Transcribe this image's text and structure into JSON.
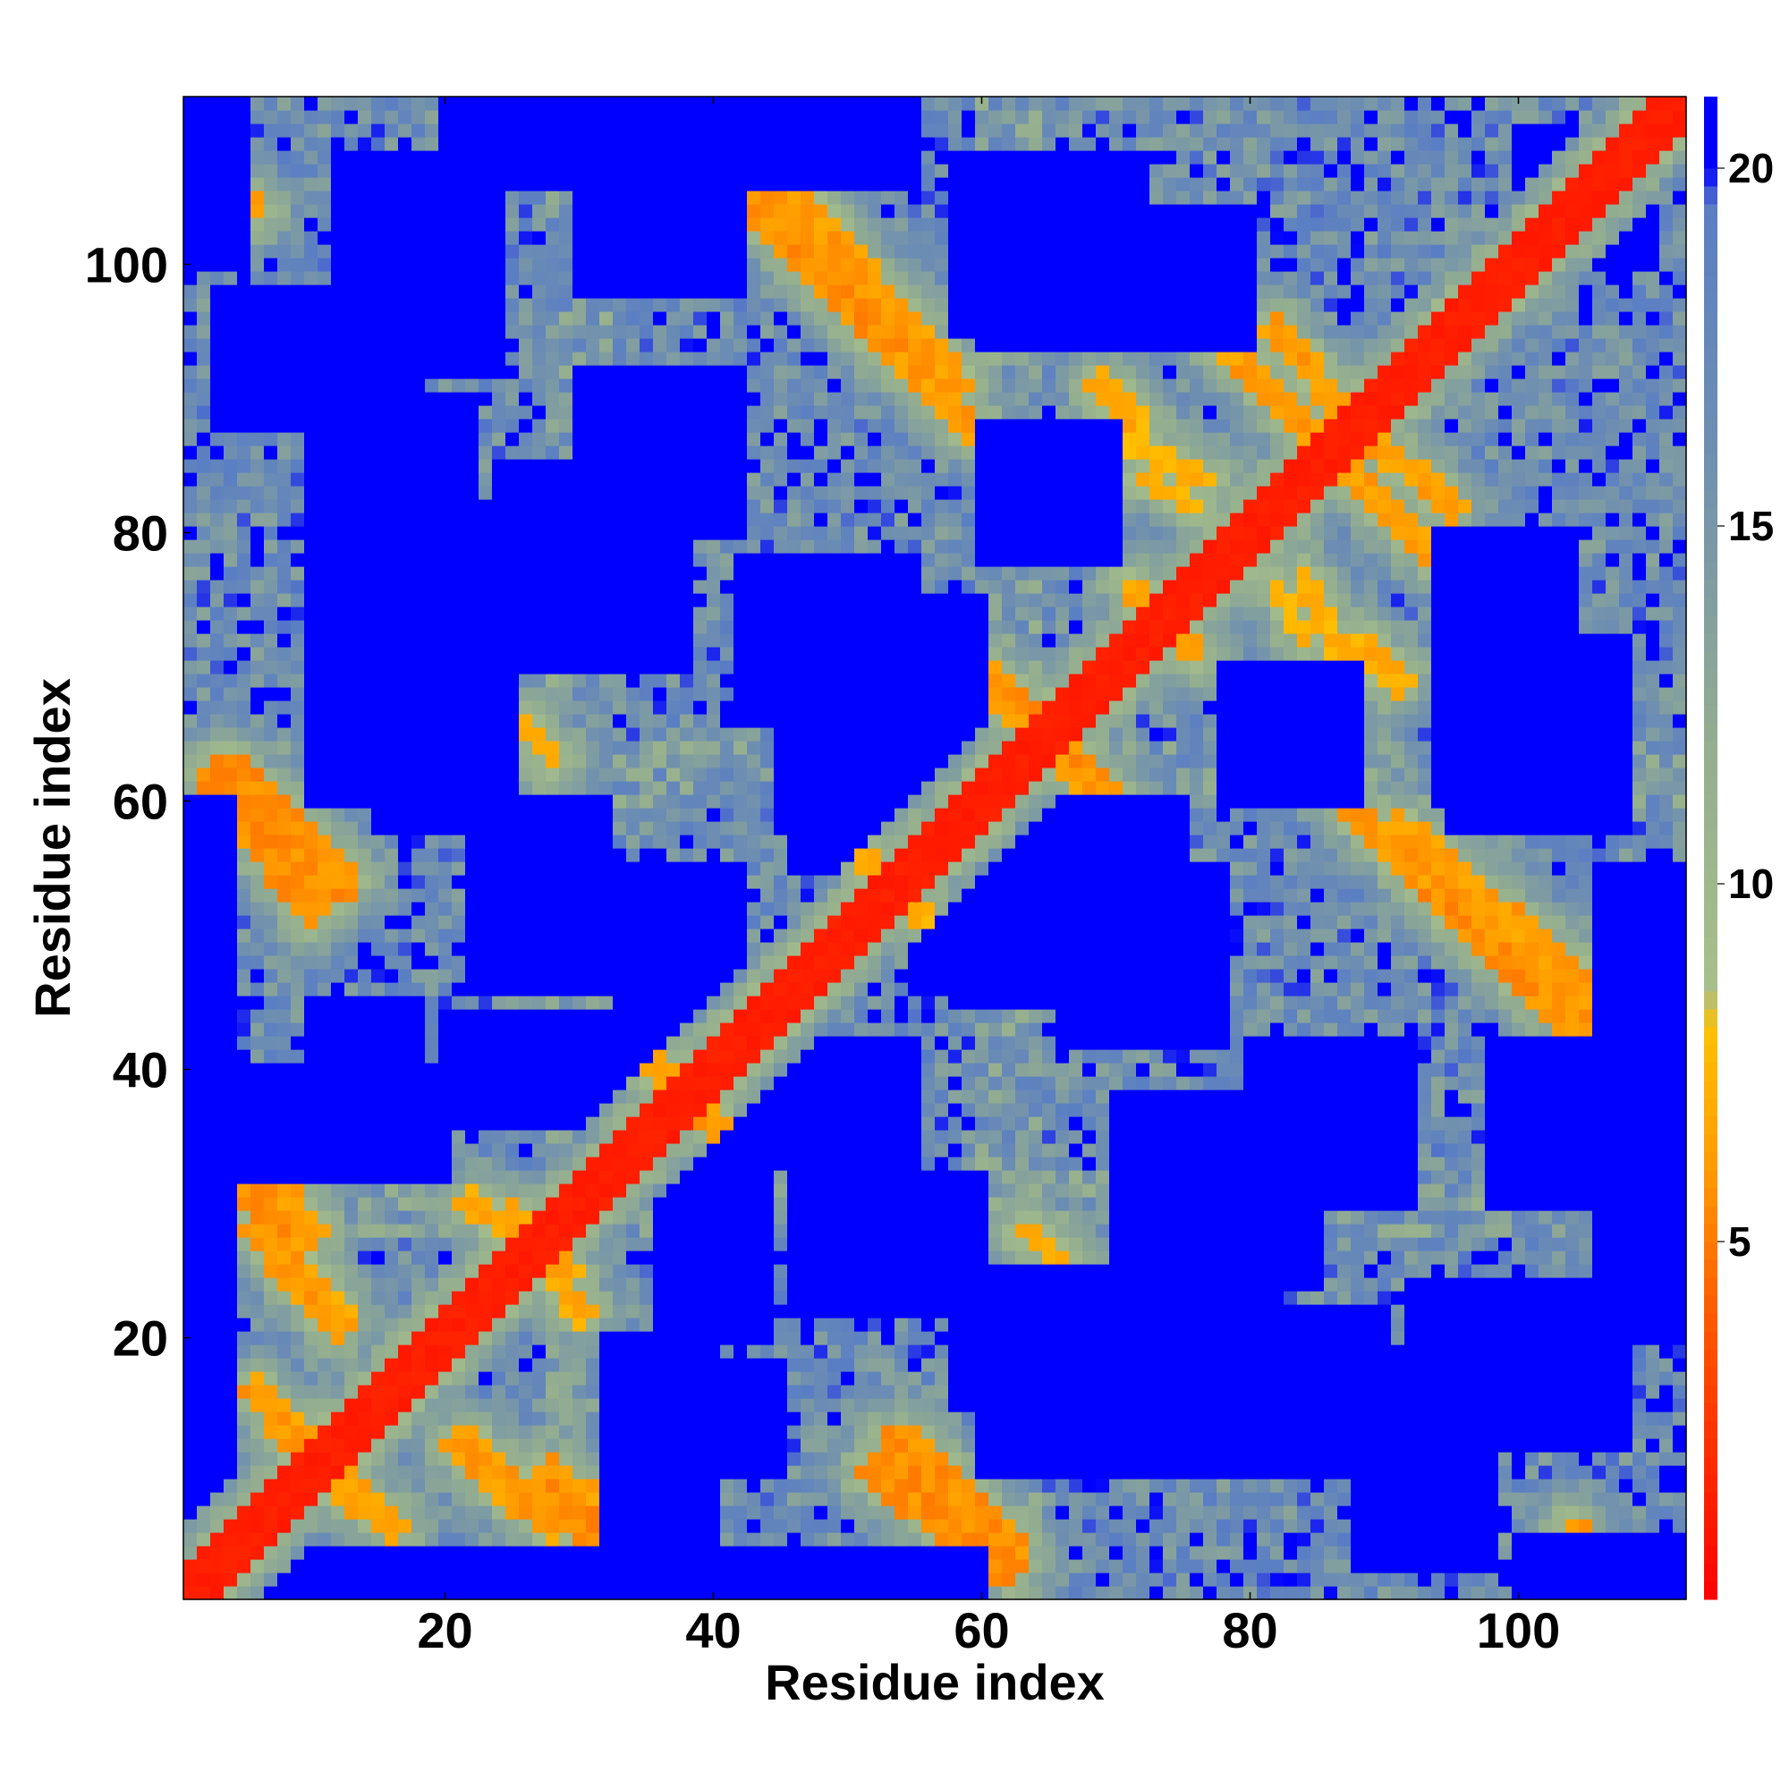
{
  "chart_data": {
    "type": "heatmap",
    "title": "",
    "xlabel": "Residue index",
    "ylabel": "Residue index",
    "n_residues": 112,
    "xlim": [
      0.5,
      112.5
    ],
    "ylim": [
      0.5,
      112.5
    ],
    "x_ticks": [
      20,
      40,
      60,
      80,
      100
    ],
    "y_ticks": [
      20,
      40,
      60,
      80,
      100
    ],
    "colorbar": {
      "range": [
        0,
        21
      ],
      "ticks": [
        5,
        10,
        15,
        20
      ],
      "stops": [
        {
          "value": 0,
          "color": "#ff0000"
        },
        {
          "value": 4,
          "color": "#ff5a00"
        },
        {
          "value": 6,
          "color": "#ff9a00"
        },
        {
          "value": 8,
          "color": "#ffc000"
        },
        {
          "value": 8.5,
          "color": "#a8c08a"
        },
        {
          "value": 12,
          "color": "#93ad90"
        },
        {
          "value": 16,
          "color": "#6f8fb0"
        },
        {
          "value": 19.5,
          "color": "#5a7ec4"
        },
        {
          "value": 20,
          "color": "#0000ff"
        },
        {
          "value": 21,
          "color": "#0000ff"
        }
      ]
    },
    "cap_value": 21,
    "diagonal_band": {
      "halfwidth": 2,
      "value": 1
    },
    "contact_segments": [
      {
        "from": [
          1,
          108
        ],
        "to": [
          6,
          104
        ],
        "halfwidth": 0.8,
        "value": 5.5
      },
      {
        "from": [
          4,
          62
        ],
        "to": [
          12,
          54
        ],
        "halfwidth": 1.6,
        "value": 5.0
      },
      {
        "from": [
          4,
          35
        ],
        "to": [
          10,
          28
        ],
        "halfwidth": 1.2,
        "value": 5.5
      },
      {
        "from": [
          7,
          28
        ],
        "to": [
          12,
          22
        ],
        "halfwidth": 1.0,
        "value": 6.0
      },
      {
        "from": [
          10,
          11
        ],
        "to": [
          16,
          6
        ],
        "halfwidth": 1.2,
        "value": 5.5
      },
      {
        "from": [
          21,
          12
        ],
        "to": [
          28,
          6
        ],
        "halfwidth": 1.2,
        "value": 5.5
      },
      {
        "from": [
          28,
          8
        ],
        "to": [
          34,
          3
        ],
        "halfwidth": 1.2,
        "value": 5.0
      },
      {
        "from": [
          40,
          112
        ],
        "to": [
          47,
          104
        ],
        "halfwidth": 1.2,
        "value": 5.5
      },
      {
        "from": [
          47,
          104
        ],
        "to": [
          58,
          91
        ],
        "halfwidth": 1.3,
        "value": 5.5
      },
      {
        "from": [
          52,
          10
        ],
        "to": [
          62,
          3
        ],
        "halfwidth": 1.4,
        "value": 5.0
      },
      {
        "from": [
          88,
          59
        ],
        "to": [
          94,
          53
        ],
        "halfwidth": 1.0,
        "value": 5.5
      },
      {
        "from": [
          94,
          53
        ],
        "to": [
          110,
          38
        ],
        "halfwidth": 1.3,
        "value": 5.0
      },
      {
        "from": [
          82,
          95
        ],
        "to": [
          88,
          88
        ],
        "halfwidth": 1.0,
        "value": 5.5
      },
      {
        "from": [
          87,
          85
        ],
        "to": [
          94,
          78
        ],
        "halfwidth": 1.0,
        "value": 5.5
      },
      {
        "from": [
          33,
          43
        ],
        "to": [
          38,
          38
        ],
        "halfwidth": 1.0,
        "value": 5.5
      },
      {
        "from": [
          39,
          37
        ],
        "to": [
          43,
          32
        ],
        "halfwidth": 0.9,
        "value": 6.0
      },
      {
        "from": [
          60,
          70
        ],
        "to": [
          64,
          66
        ],
        "halfwidth": 1.0,
        "value": 5.0
      },
      {
        "from": [
          67,
          62
        ],
        "to": [
          71,
          58
        ],
        "halfwidth": 1.0,
        "value": 5.5
      },
      {
        "from": [
          71,
          76
        ],
        "to": [
          76,
          71
        ],
        "halfwidth": 0.9,
        "value": 6.0
      },
      {
        "from": [
          22,
          30
        ],
        "to": [
          29,
          25
        ],
        "halfwidth": 1.0,
        "value": 6.0
      },
      {
        "from": [
          52,
          55
        ],
        "to": [
          56,
          51
        ],
        "halfwidth": 0.8,
        "value": 6.5
      },
      {
        "from": [
          84,
          77
        ],
        "to": [
          87,
          70
        ],
        "halfwidth": 0.8,
        "value": 6.5
      },
      {
        "from": [
          89,
          71
        ],
        "to": [
          91,
          69
        ],
        "halfwidth": 1.0,
        "value": 6.0
      },
      {
        "from": [
          69,
          90
        ],
        "to": [
          72,
          88
        ],
        "halfwidth": 0.8,
        "value": 6.5
      },
      {
        "from": [
          72,
          84
        ],
        "to": [
          76,
          82
        ],
        "halfwidth": 0.8,
        "value": 6.5
      },
      {
        "from": [
          26,
          66
        ],
        "to": [
          28,
          63
        ],
        "halfwidth": 0.8,
        "value": 6.5
      },
      {
        "from": [
          63,
          28
        ],
        "to": [
          66,
          26
        ],
        "halfwidth": 0.8,
        "value": 6.5
      }
    ],
    "blue_regions": [
      {
        "x": [
          1,
          4
        ],
        "y": [
          1,
          60
        ]
      },
      {
        "x": [
          8,
          16
        ],
        "y": [
          1,
          4
        ]
      },
      {
        "x": [
          10,
          18
        ],
        "y": [
          36,
          45
        ]
      },
      {
        "x": [
          10,
          22
        ],
        "y": [
          60,
          90
        ]
      },
      {
        "x": [
          12,
          24
        ],
        "y": [
          92,
          108
        ]
      },
      {
        "x": [
          20,
          36
        ],
        "y": [
          36,
          44
        ]
      },
      {
        "x": [
          24,
          38
        ],
        "y": [
          70,
          85
        ]
      },
      {
        "x": [
          32,
          40
        ],
        "y": [
          3,
          20
        ]
      },
      {
        "x": [
          33,
          42
        ],
        "y": [
          43,
          55
        ]
      },
      {
        "x": [
          32,
          40
        ],
        "y": [
          100,
          110
        ]
      },
      {
        "x": [
          44,
          55
        ],
        "y": [
          36,
          42
        ]
      },
      {
        "x": [
          46,
          60
        ],
        "y": [
          55,
          75
        ]
      },
      {
        "x": [
          46,
          60
        ],
        "y": [
          22,
          32
        ]
      },
      {
        "x": [
          58,
          70
        ],
        "y": [
          15,
          25
        ]
      },
      {
        "x": [
          58,
          70
        ],
        "y": [
          45,
          52
        ]
      },
      {
        "x": [
          58,
          72
        ],
        "y": [
          95,
          108
        ]
      },
      {
        "x": [
          66,
          78
        ],
        "y": [
          42,
          55
        ]
      },
      {
        "x": [
          70,
          82
        ],
        "y": [
          15,
          30
        ]
      },
      {
        "x": [
          78,
          88
        ],
        "y": [
          60,
          70
        ]
      },
      {
        "x": [
          80,
          92
        ],
        "y": [
          30,
          42
        ]
      },
      {
        "x": [
          88,
          98
        ],
        "y": [
          3,
          18
        ]
      },
      {
        "x": [
          94,
          104
        ],
        "y": [
          60,
          80
        ]
      },
      {
        "x": [
          98,
          108
        ],
        "y": [
          30,
          42
        ]
      },
      {
        "x": [
          100,
          110
        ],
        "y": [
          100,
          108
        ]
      },
      {
        "x": [
          106,
          112
        ],
        "y": [
          20,
          55
        ]
      },
      {
        "x": [
          100,
          112
        ],
        "y": [
          1,
          5
        ]
      }
    ],
    "noise_seed": 7
  }
}
